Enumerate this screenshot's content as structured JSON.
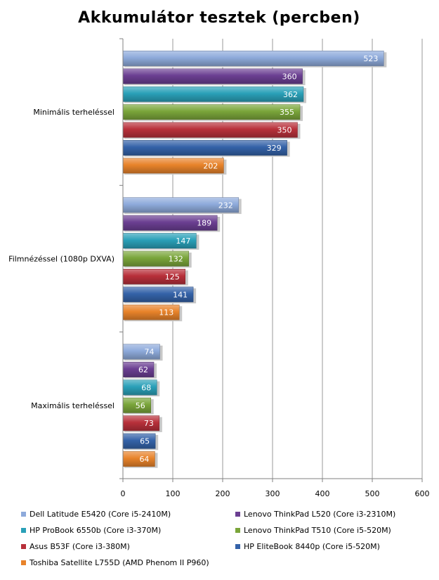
{
  "chart_data": {
    "type": "bar",
    "orientation": "horizontal",
    "title": "Akkumulátor  tesztek (percben)",
    "categories": [
      "Minimális terheléssel",
      "Filmnézéssel (1080p DXVA)",
      "Maximális terheléssel"
    ],
    "xlim": [
      0,
      600
    ],
    "xticks": [
      0,
      100,
      200,
      300,
      400,
      500,
      600
    ],
    "grid": true,
    "legend_position": "bottom",
    "data_labels": true,
    "series": [
      {
        "name": "Dell Latitude E5420 (Core i5-2410M)",
        "color": "#8eaadb",
        "values": [
          523,
          232,
          74
        ]
      },
      {
        "name": "Lenovo ThinkPad L520 (Core i3-2310M)",
        "color": "#6b3f92",
        "values": [
          360,
          189,
          62
        ]
      },
      {
        "name": "HP ProBook 6550b (Core i3-370M)",
        "color": "#2aa0b8",
        "values": [
          362,
          147,
          68
        ]
      },
      {
        "name": "Lenovo ThinkPad T510 (Core i5-520M)",
        "color": "#7aa53a",
        "values": [
          355,
          132,
          56
        ]
      },
      {
        "name": "Asus B53F (Core i3-380M)",
        "color": "#b8303a",
        "values": [
          350,
          125,
          73
        ]
      },
      {
        "name": "HP EliteBook 8440p (Core i5-520M)",
        "color": "#3462a8",
        "values": [
          329,
          141,
          65
        ]
      },
      {
        "name": "Toshiba Satellite L755D (AMD Phenom II P960)",
        "color": "#e8832a",
        "values": [
          202,
          113,
          64
        ]
      }
    ]
  }
}
